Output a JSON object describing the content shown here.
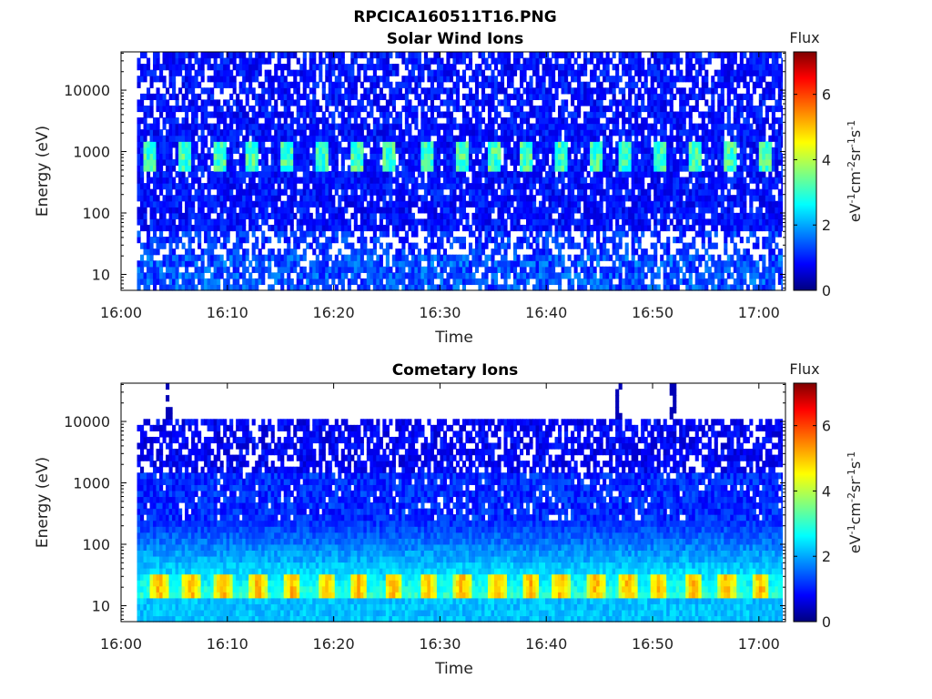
{
  "figure": {
    "filename": "RPCICA160511T16.PNG",
    "colormap_name": "jet",
    "background": "#ffffff"
  },
  "chart_data": [
    {
      "type": "heatmap",
      "title": "Solar Wind Ions",
      "xlabel": "Time",
      "ylabel": "Energy (eV)",
      "y_scale": "log",
      "x_ticks": [
        "16:00",
        "16:10",
        "16:20",
        "16:30",
        "16:40",
        "16:50",
        "17:00"
      ],
      "x_tick_minutes": [
        0,
        10,
        20,
        30,
        40,
        50,
        60
      ],
      "xlim_minutes": [
        0,
        62.5
      ],
      "data_x_range_minutes": [
        1.5,
        62.2
      ],
      "y_ticks": [
        "10",
        "100",
        "1000",
        "10000"
      ],
      "y_tick_values": [
        10,
        100,
        1000,
        10000
      ],
      "ylim": [
        5.5,
        42000
      ],
      "colorbar": {
        "label_top": "Flux",
        "label_side": "eV-1cm-2sr-1s-1",
        "ticks": [
          "0",
          "2",
          "4",
          "6"
        ],
        "tick_values": [
          0,
          2,
          4,
          6
        ],
        "range": [
          0,
          7.3
        ]
      },
      "features": {
        "solar_wind_bursts_energy_eV": [
          700,
          1300
        ],
        "burst_minutes": [
          2.7,
          6.0,
          9.4,
          12.2,
          15.5,
          18.9,
          22.1,
          25.3,
          28.9,
          32.1,
          35.1,
          38.0,
          41.5,
          44.7,
          47.4,
          50.6,
          53.9,
          57.2,
          60.5
        ],
        "burst_flux_peak": 3.8,
        "background_flux": 0.6,
        "low_energy_band_eV": [
          5.5,
          20
        ],
        "low_energy_flux": 1.5
      }
    },
    {
      "type": "heatmap",
      "title": "Cometary Ions",
      "xlabel": "Time",
      "ylabel": "Energy (eV)",
      "y_scale": "log",
      "x_ticks": [
        "16:00",
        "16:10",
        "16:20",
        "16:30",
        "16:40",
        "16:50",
        "17:00"
      ],
      "x_tick_minutes": [
        0,
        10,
        20,
        30,
        40,
        50,
        60
      ],
      "xlim_minutes": [
        0,
        62.5
      ],
      "data_x_range_minutes": [
        1.5,
        62.2
      ],
      "y_ticks": [
        "10",
        "100",
        "1000",
        "10000"
      ],
      "y_tick_values": [
        10,
        100,
        1000,
        10000
      ],
      "ylim": [
        5.5,
        42000
      ],
      "colorbar": {
        "label_top": "Flux",
        "label_side": "eV-1cm-2sr-1s-1",
        "ticks": [
          "0",
          "2",
          "4",
          "6"
        ],
        "tick_values": [
          0,
          2,
          4,
          6
        ],
        "range": [
          0,
          7.3
        ]
      },
      "features": {
        "data_energy_max_eV": 11000,
        "peak_band_eV": [
          14,
          35
        ],
        "peak_minutes": [
          3.6,
          6.6,
          9.6,
          12.9,
          16.1,
          19.4,
          22.4,
          25.6,
          28.9,
          32.1,
          35.4,
          38.5,
          41.4,
          44.7,
          47.7,
          50.6,
          53.9,
          57.0,
          60.2
        ],
        "peak_flux": 5.2,
        "spikes_minutes": [
          4.4,
          46.8,
          51.8
        ],
        "spike_energy_max_eV": 38000
      }
    }
  ]
}
